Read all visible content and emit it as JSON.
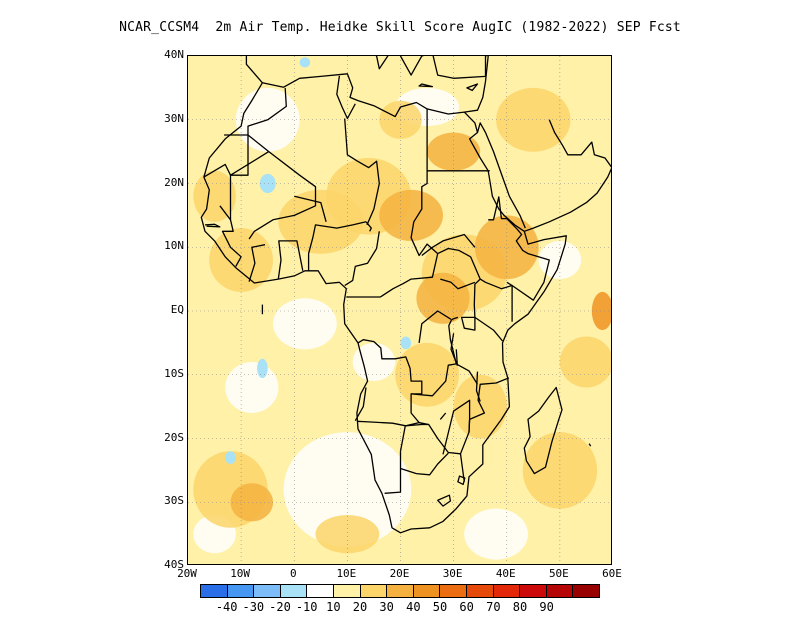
{
  "title": "NCAR_CCSM4  2m Air Temp. Heidke Skill Score AugIC (1982-2022) SEP Fcst",
  "map": {
    "lat_range": [
      -40,
      40
    ],
    "lon_range": [
      -20,
      60
    ],
    "y_ticks": [
      {
        "lat": 40,
        "label": "40N"
      },
      {
        "lat": 30,
        "label": "30N"
      },
      {
        "lat": 20,
        "label": "20N"
      },
      {
        "lat": 10,
        "label": "10N"
      },
      {
        "lat": 0,
        "label": "EQ"
      },
      {
        "lat": -10,
        "label": "10S"
      },
      {
        "lat": -20,
        "label": "20S"
      },
      {
        "lat": -30,
        "label": "30S"
      },
      {
        "lat": -40,
        "label": "40S"
      }
    ],
    "x_ticks": [
      {
        "lon": -20,
        "label": "20W"
      },
      {
        "lon": -10,
        "label": "10W"
      },
      {
        "lon": 0,
        "label": "0"
      },
      {
        "lon": 10,
        "label": "10E"
      },
      {
        "lon": 20,
        "label": "20E"
      },
      {
        "lon": 30,
        "label": "30E"
      },
      {
        "lon": 40,
        "label": "40E"
      },
      {
        "lon": 50,
        "label": "50E"
      },
      {
        "lon": 60,
        "label": "60E"
      }
    ],
    "grid": "dotted",
    "colors": {
      "ocean_low": "#fff1a8",
      "mid": "#fbd56a",
      "high": "#f5b13f",
      "max": "#ee9322",
      "negative": "#a9e1f7",
      "coast": "#000000"
    }
  },
  "colorbar": {
    "colors": [
      "#2a6ee8",
      "#4597f2",
      "#7cbcf8",
      "#a9e1f7",
      "#ffffff",
      "#fff1a8",
      "#fbd56a",
      "#f5b13f",
      "#ee9322",
      "#ec6d11",
      "#e64a0a",
      "#e3280a",
      "#cc0a0a",
      "#b50505",
      "#990000"
    ],
    "labels": [
      "-40",
      "-30",
      "-20",
      "-10",
      "10",
      "20",
      "30",
      "40",
      "50",
      "60",
      "70",
      "80",
      "90"
    ]
  }
}
